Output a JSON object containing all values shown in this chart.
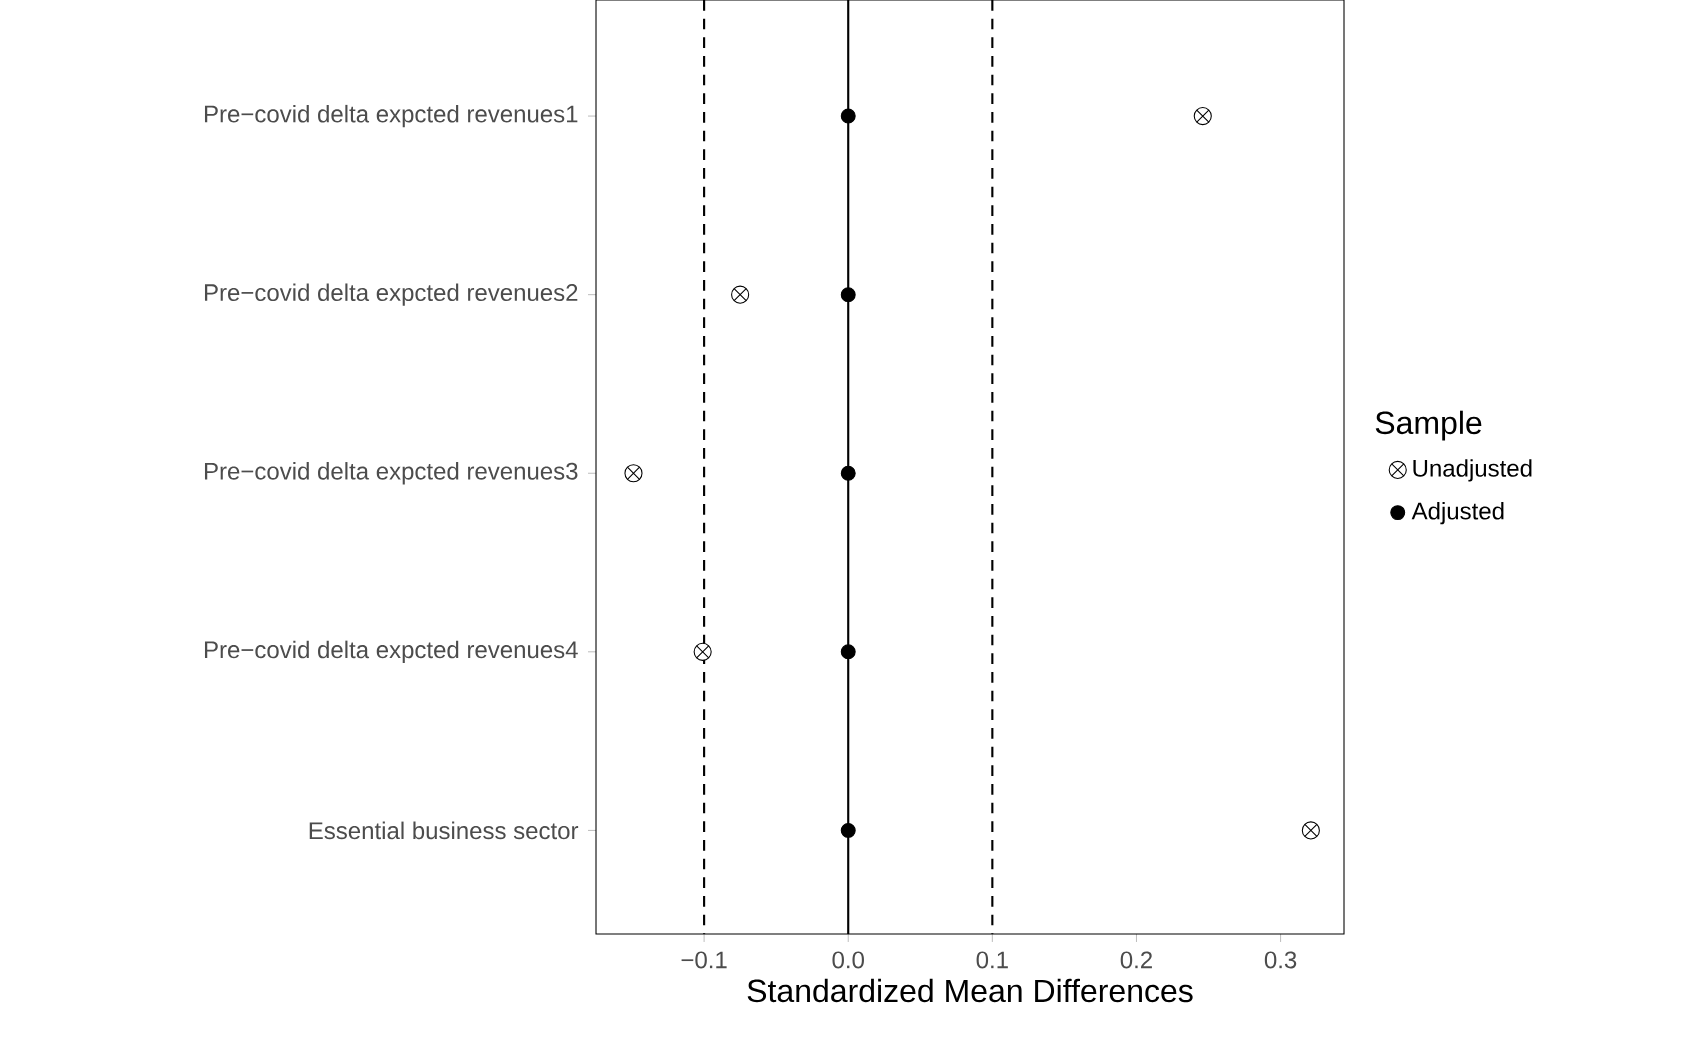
{
  "chart_data": {
    "type": "scatter",
    "orientation": "horizontal",
    "xlabel": "Standardized Mean Differences",
    "legend_title": "Sample",
    "legend": "right",
    "categories": [
      "Pre−covid delta expcted revenues1",
      "Pre−covid delta expcted revenues2",
      "Pre−covid delta expcted revenues3",
      "Pre−covid delta expcted revenues4",
      "Essential business sector"
    ],
    "series": [
      {
        "name": "Unadjusted",
        "color": "#000000",
        "marker": "circle",
        "values": [
          0.246,
          -0.075,
          -0.149,
          -0.101,
          0.321
        ]
      },
      {
        "name": "Adjusted",
        "color": "#000000",
        "marker": "circle",
        "values": [
          0,
          0,
          0,
          0,
          0
        ]
      }
    ],
    "xlim": [
      -0.175,
      0.344
    ],
    "xticks": [
      {
        "value": -0.1,
        "label": "−0.1"
      },
      {
        "value": 0,
        "label": "0.0"
      },
      {
        "value": 0.1,
        "label": "0.1"
      },
      {
        "value": 0.2,
        "label": "0.2"
      },
      {
        "value": 0.3,
        "label": "0.3"
      }
    ],
    "ref_lines": [
      {
        "axis": "x",
        "value": -0.1,
        "line_style": "dashed"
      },
      {
        "axis": "x",
        "value": 0,
        "line_style": "solid"
      },
      {
        "axis": "x",
        "value": 0.1,
        "line_style": "dashed"
      }
    ],
    "grid": false
  }
}
